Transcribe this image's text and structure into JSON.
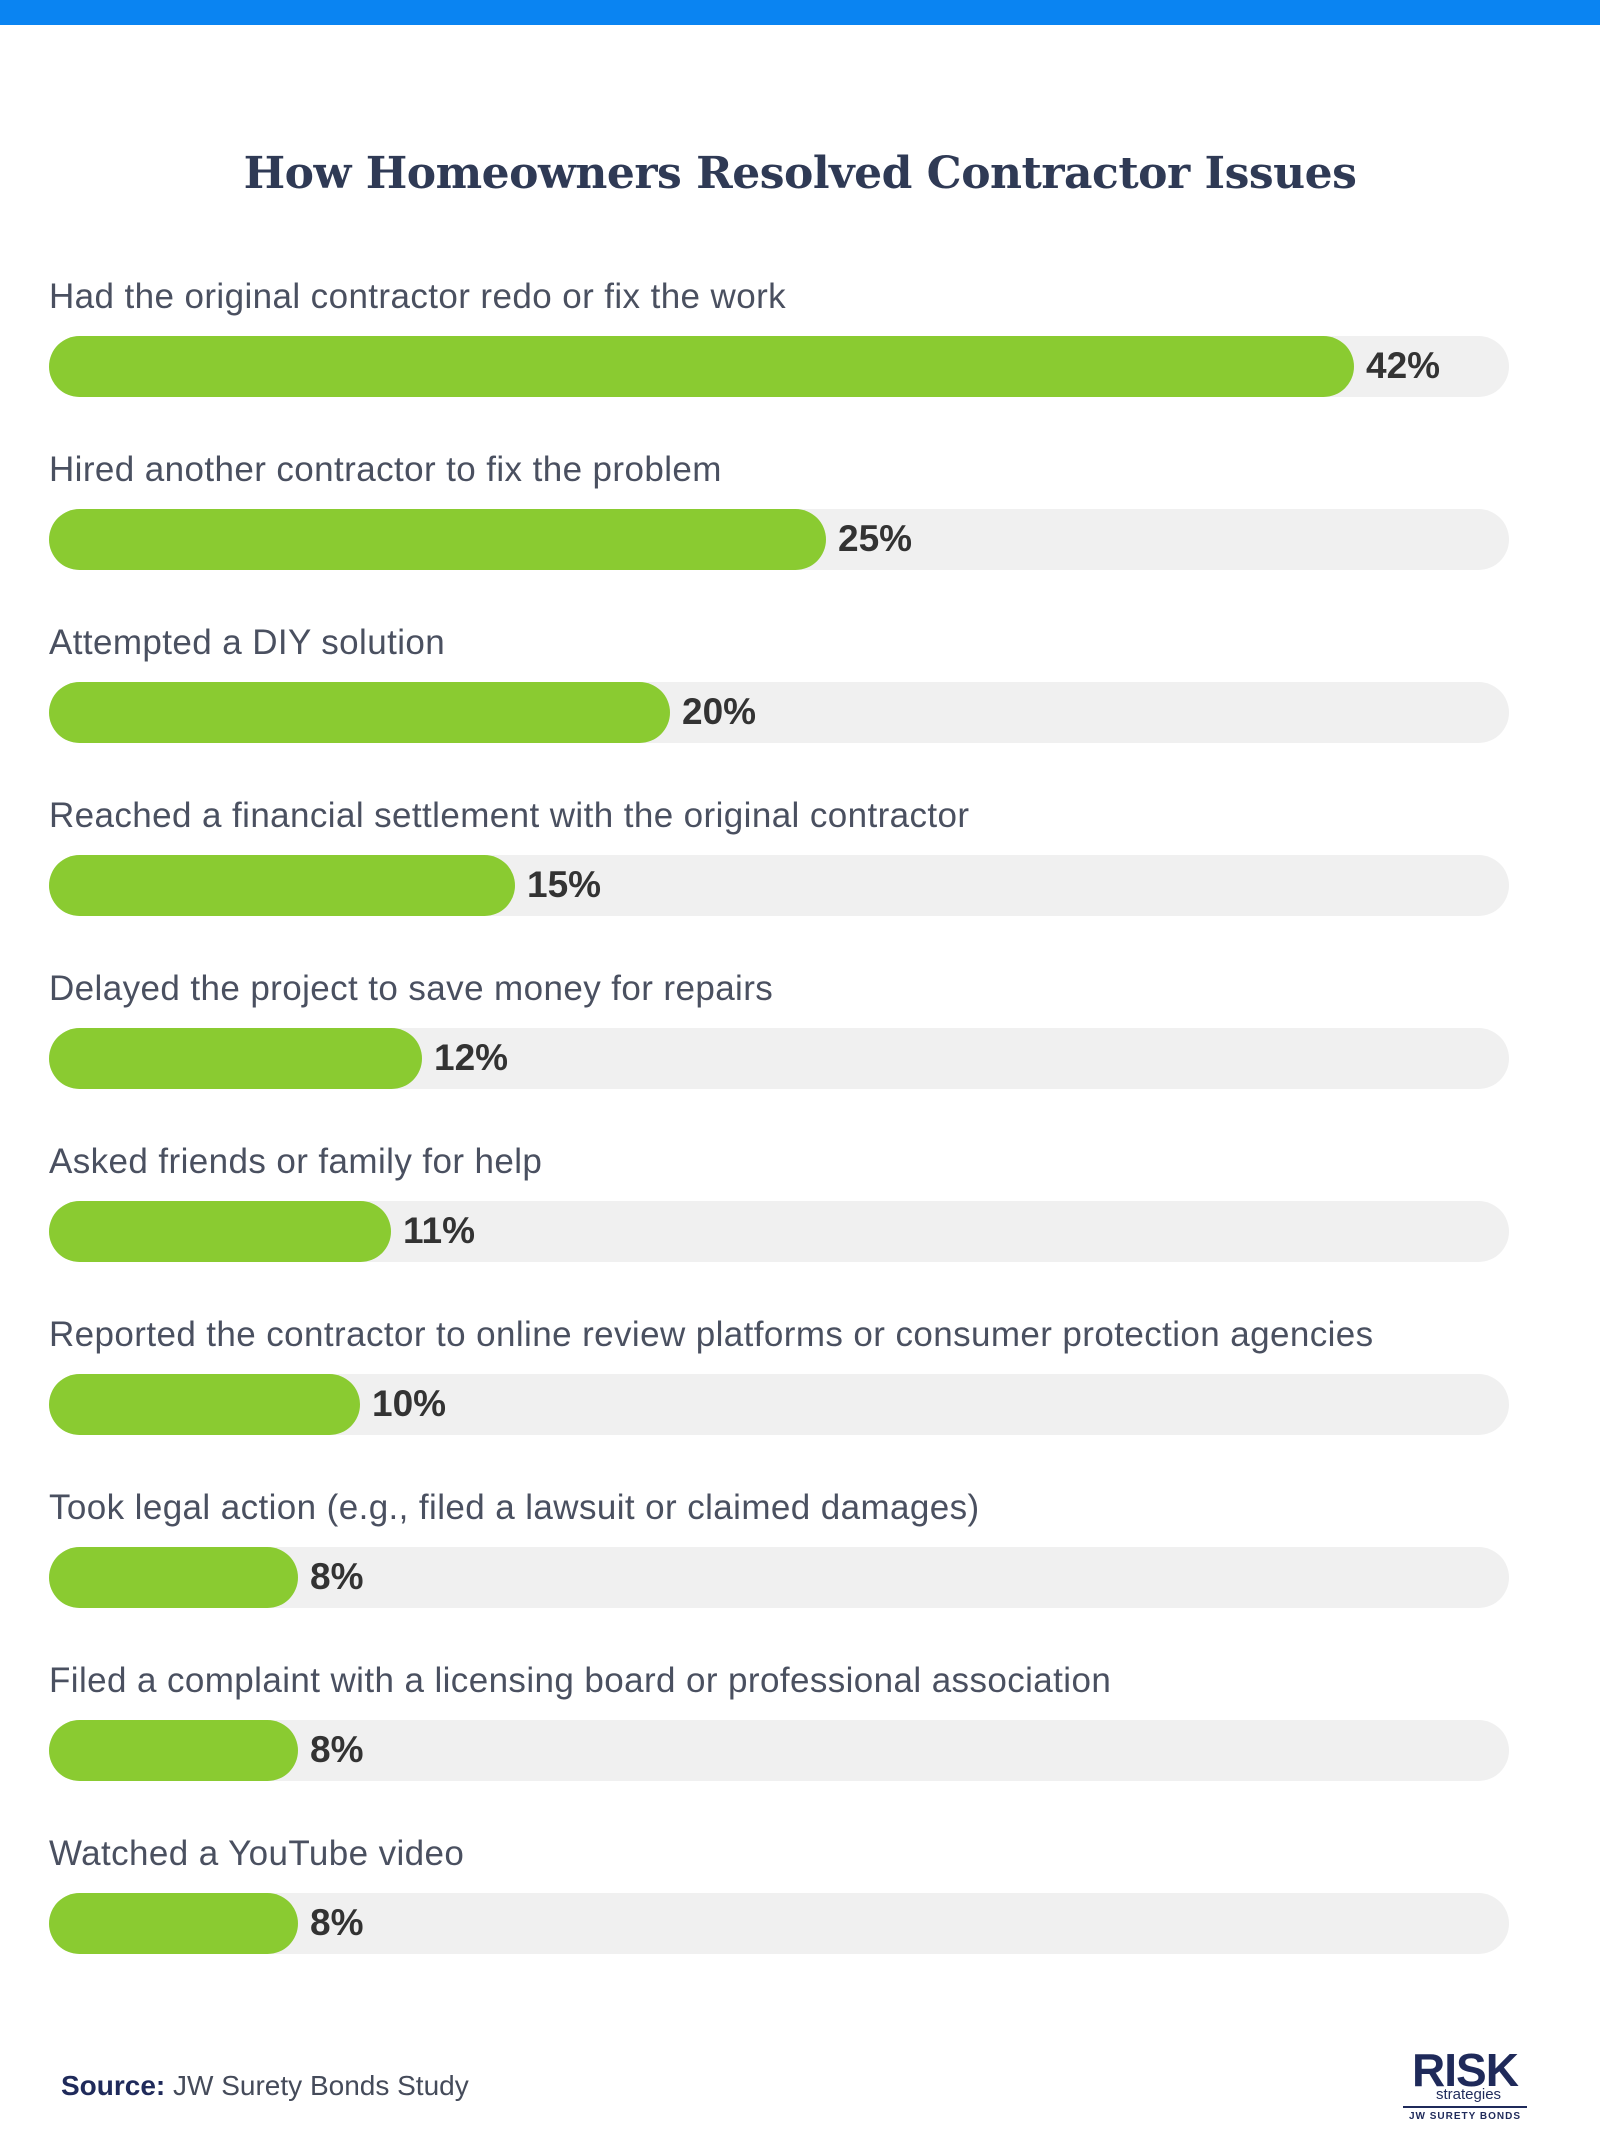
{
  "colors": {
    "top_bar": "#0a84f2",
    "bar_fill": "#8acb31",
    "track": "#f0f0f0",
    "title": "#2f3a55"
  },
  "chart_data": {
    "type": "bar",
    "orientation": "horizontal",
    "title": "How Homeowners Resolved Contractor Issues",
    "xlabel": "",
    "ylabel": "",
    "xlim": [
      0,
      47
    ],
    "unit": "%",
    "grid": false,
    "categories": [
      "Had the original contractor redo or fix the work",
      "Hired another contractor to fix the problem",
      "Attempted a DIY solution",
      "Reached a financial settlement with the original contractor",
      "Delayed the project to save money for repairs",
      "Asked friends or family for help",
      "Reported the contractor to online review platforms or consumer protection agencies",
      "Took legal action (e.g., filed a lawsuit or claimed damages)",
      "Filed a complaint with a licensing board or professional association",
      "Watched a YouTube video"
    ],
    "values": [
      42,
      25,
      20,
      15,
      12,
      11,
      10,
      8,
      8,
      8
    ],
    "value_labels": [
      "42%",
      "25%",
      "20%",
      "15%",
      "12%",
      "11%",
      "10%",
      "8%",
      "8%",
      "8%"
    ]
  },
  "footer": {
    "source_label": "Source:",
    "source_text": " JW Surety Bonds Study"
  },
  "logo": {
    "main": "RISK",
    "sub": "strategies",
    "tag": "JW SURETY BONDS"
  }
}
